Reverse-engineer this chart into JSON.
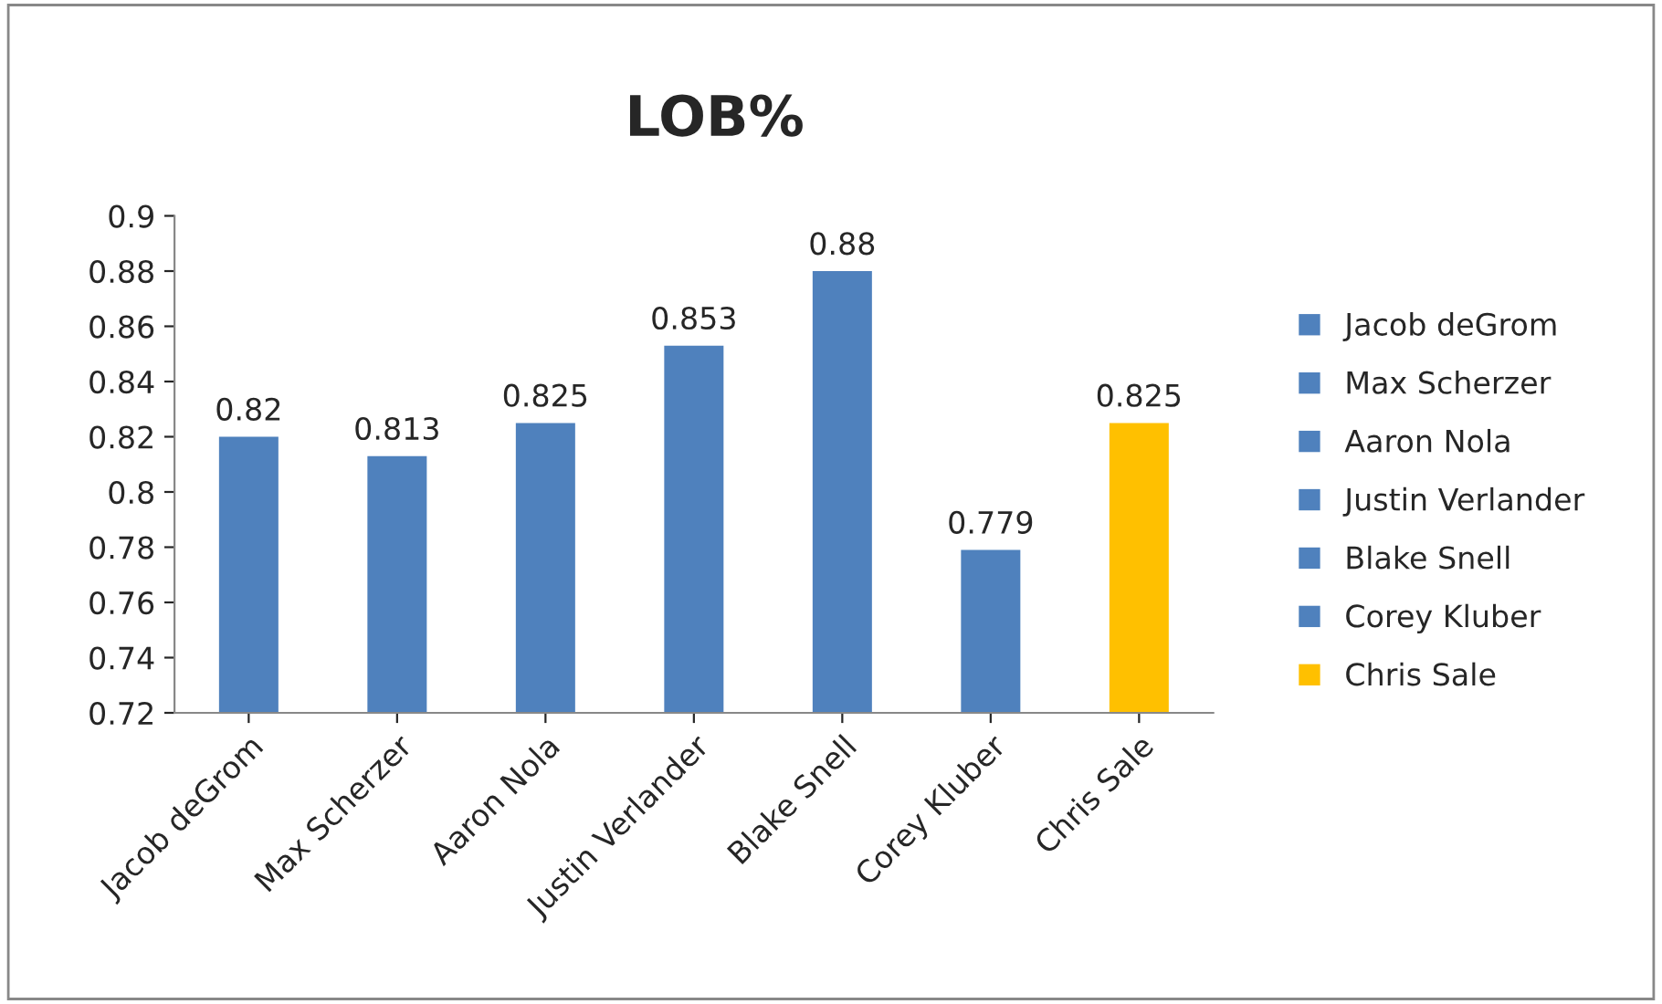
{
  "chart_data": {
    "type": "bar",
    "title": "LOB%",
    "categories": [
      "Jacob deGrom",
      "Max Scherzer",
      "Aaron Nola",
      "Justin Verlander",
      "Blake Snell",
      "Corey Kluber",
      "Chris Sale"
    ],
    "series": [
      {
        "name": "Jacob deGrom",
        "color": "#4f81bd",
        "values": [
          0.82,
          null,
          null,
          null,
          null,
          null,
          null
        ]
      },
      {
        "name": "Max Scherzer",
        "color": "#4f81bd",
        "values": [
          null,
          0.813,
          null,
          null,
          null,
          null,
          null
        ]
      },
      {
        "name": "Aaron Nola",
        "color": "#4f81bd",
        "values": [
          null,
          null,
          0.825,
          null,
          null,
          null,
          null
        ]
      },
      {
        "name": "Justin Verlander",
        "color": "#4f81bd",
        "values": [
          null,
          null,
          null,
          0.853,
          null,
          null,
          null
        ]
      },
      {
        "name": "Blake Snell",
        "color": "#4f81bd",
        "values": [
          null,
          null,
          null,
          null,
          0.88,
          null,
          null
        ]
      },
      {
        "name": "Corey Kluber",
        "color": "#4f81bd",
        "values": [
          null,
          null,
          null,
          null,
          null,
          0.779,
          null
        ]
      },
      {
        "name": "Chris Sale",
        "color": "#ffc000",
        "values": [
          null,
          null,
          null,
          null,
          null,
          null,
          0.825
        ]
      }
    ],
    "ylim": [
      0.72,
      0.9
    ],
    "yticks": [
      0.72,
      0.74,
      0.76,
      0.78,
      0.8,
      0.82,
      0.84,
      0.86,
      0.88,
      0.9
    ],
    "data_labels": true,
    "grid": false,
    "legend": "right"
  }
}
